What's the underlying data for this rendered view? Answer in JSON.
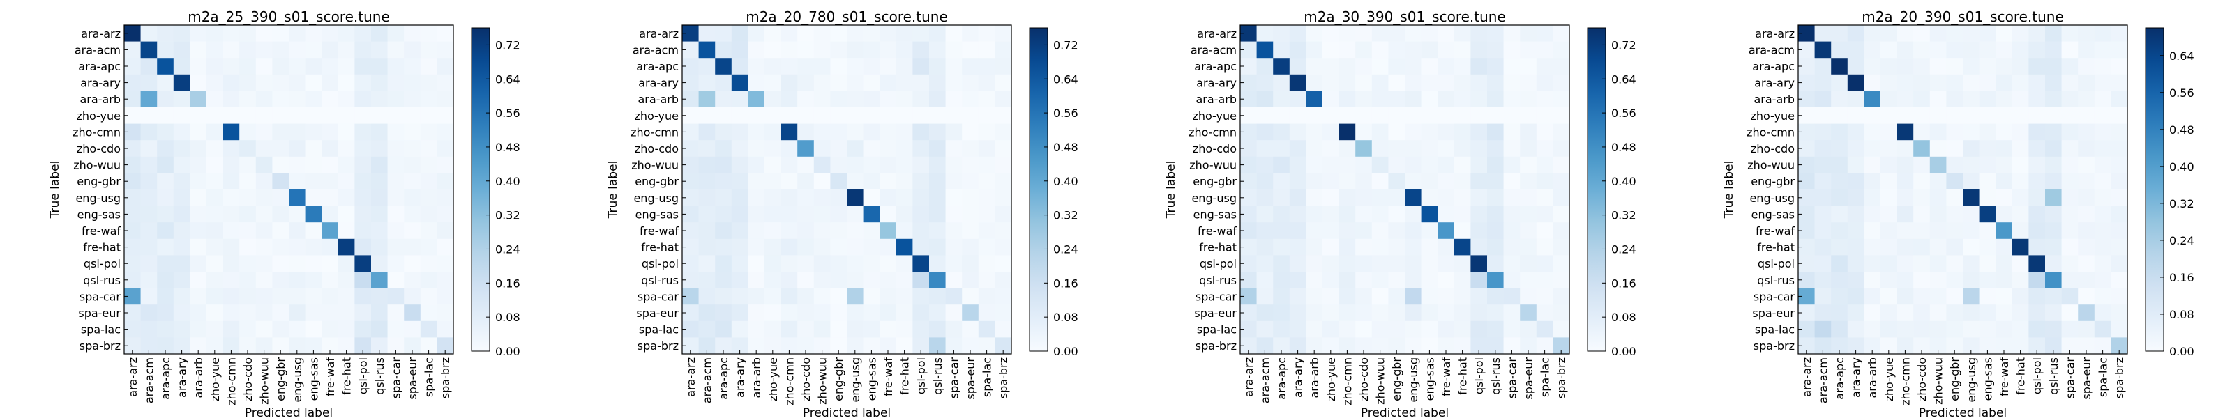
{
  "chart_data": [
    {
      "type": "heatmap",
      "title": "m2a_25_390_s01_score.tune",
      "xlabel": "Predicted label",
      "ylabel": "True label",
      "labels": [
        "ara-arz",
        "ara-acm",
        "ara-apc",
        "ara-ary",
        "ara-arb",
        "zho-yue",
        "zho-cmn",
        "zho-cdo",
        "zho-wuu",
        "eng-gbr",
        "eng-usg",
        "eng-sas",
        "fre-waf",
        "fre-hat",
        "qsl-pol",
        "qsl-rus",
        "spa-car",
        "spa-eur",
        "spa-lac",
        "spa-brz"
      ],
      "colorbar": {
        "min": 0,
        "max": 0.76,
        "ticks": [
          "0.00",
          "0.08",
          "0.16",
          "0.24",
          "0.32",
          "0.40",
          "0.48",
          "0.56",
          "0.64",
          "0.72"
        ]
      },
      "diagonal": [
        0.76,
        0.7,
        0.66,
        0.72,
        0.26,
        0.0,
        0.66,
        0.08,
        0.08,
        0.14,
        0.56,
        0.54,
        0.42,
        0.72,
        0.72,
        0.42,
        0.1,
        0.18,
        0.1,
        0.14
      ],
      "notable_off_diagonal": [
        [
          4,
          1,
          0.4
        ],
        [
          16,
          0,
          0.42
        ],
        [
          15,
          14,
          0.18
        ],
        [
          19,
          14,
          0.14
        ],
        [
          6,
          0,
          0.14
        ],
        [
          13,
          14,
          0.1
        ]
      ]
    },
    {
      "type": "heatmap",
      "title": "m2a_20_780_s01_score.tune",
      "xlabel": "Predicted label",
      "ylabel": "True label",
      "labels": [
        "ara-arz",
        "ara-acm",
        "ara-apc",
        "ara-ary",
        "ara-arb",
        "zho-yue",
        "zho-cmn",
        "zho-cdo",
        "zho-wuu",
        "eng-gbr",
        "eng-usg",
        "eng-sas",
        "fre-waf",
        "fre-hat",
        "qsl-pol",
        "qsl-rus",
        "spa-car",
        "spa-eur",
        "spa-lac",
        "spa-brz"
      ],
      "colorbar": {
        "min": 0,
        "max": 0.76,
        "ticks": [
          "0.00",
          "0.08",
          "0.16",
          "0.24",
          "0.32",
          "0.40",
          "0.48",
          "0.56",
          "0.64",
          "0.72"
        ]
      },
      "diagonal": [
        0.72,
        0.66,
        0.7,
        0.68,
        0.34,
        0.0,
        0.7,
        0.44,
        0.1,
        0.12,
        0.74,
        0.6,
        0.3,
        0.66,
        0.7,
        0.5,
        0.1,
        0.22,
        0.1,
        0.12
      ],
      "notable_off_diagonal": [
        [
          4,
          1,
          0.28
        ],
        [
          16,
          0,
          0.22
        ],
        [
          15,
          14,
          0.18
        ],
        [
          19,
          15,
          0.22
        ],
        [
          16,
          10,
          0.24
        ]
      ]
    },
    {
      "type": "heatmap",
      "title": "m2a_30_390_s01_score.tune",
      "xlabel": "Predicted label",
      "ylabel": "True label",
      "labels": [
        "ara-arz",
        "ara-acm",
        "ara-apc",
        "ara-ary",
        "ara-arb",
        "zho-yue",
        "zho-cmn",
        "zho-cdo",
        "zho-wuu",
        "eng-gbr",
        "eng-usg",
        "eng-sas",
        "fre-waf",
        "fre-hat",
        "qsl-pol",
        "qsl-rus",
        "spa-car",
        "spa-eur",
        "spa-lac",
        "spa-brz"
      ],
      "colorbar": {
        "min": 0,
        "max": 0.76,
        "ticks": [
          "0.00",
          "0.08",
          "0.16",
          "0.24",
          "0.32",
          "0.40",
          "0.48",
          "0.56",
          "0.64",
          "0.72"
        ]
      },
      "diagonal": [
        0.74,
        0.66,
        0.72,
        0.74,
        0.62,
        0.0,
        0.76,
        0.3,
        0.08,
        0.08,
        0.7,
        0.66,
        0.46,
        0.7,
        0.74,
        0.46,
        0.1,
        0.22,
        0.1,
        0.22
      ],
      "notable_off_diagonal": [
        [
          16,
          0,
          0.24
        ],
        [
          15,
          14,
          0.18
        ],
        [
          19,
          14,
          0.1
        ],
        [
          16,
          10,
          0.2
        ]
      ]
    },
    {
      "type": "heatmap",
      "title": "m2a_20_390_s01_score.tune",
      "xlabel": "Predicted label",
      "ylabel": "True label",
      "labels": [
        "ara-arz",
        "ara-acm",
        "ara-apc",
        "ara-ary",
        "ara-arb",
        "zho-yue",
        "zho-cmn",
        "zho-cdo",
        "zho-wuu",
        "eng-gbr",
        "eng-usg",
        "eng-sas",
        "fre-waf",
        "fre-hat",
        "qsl-pol",
        "qsl-rus",
        "spa-car",
        "spa-eur",
        "spa-lac",
        "spa-brz"
      ],
      "colorbar": {
        "min": 0,
        "max": 0.7,
        "ticks": [
          "0.00",
          "0.08",
          "0.16",
          "0.24",
          "0.32",
          "0.40",
          "0.48",
          "0.56",
          "0.64"
        ]
      },
      "diagonal": [
        0.7,
        0.68,
        0.7,
        0.7,
        0.46,
        0.0,
        0.68,
        0.28,
        0.24,
        0.12,
        0.68,
        0.66,
        0.42,
        0.68,
        0.68,
        0.44,
        0.1,
        0.2,
        0.1,
        0.22
      ],
      "notable_off_diagonal": [
        [
          16,
          0,
          0.36
        ],
        [
          15,
          14,
          0.18
        ],
        [
          10,
          15,
          0.26
        ],
        [
          18,
          1,
          0.18
        ],
        [
          16,
          10,
          0.2
        ]
      ]
    }
  ]
}
